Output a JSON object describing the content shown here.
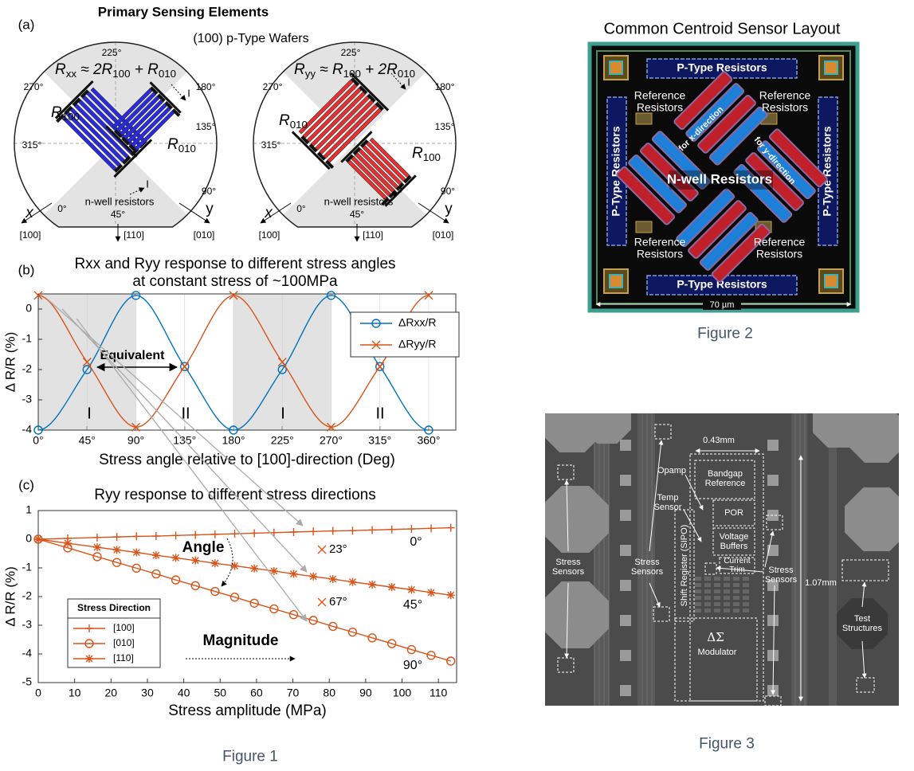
{
  "panel_a": {
    "label": "(a)",
    "title": "Primary Sensing Elements",
    "subtitle": "(100) p-Type Wafers",
    "wafers": [
      {
        "formula": [
          "R",
          "xx",
          " ≈ 2R",
          "100",
          " + R",
          "010"
        ],
        "r_first": [
          "R",
          "100"
        ],
        "r_second": [
          "R",
          "010"
        ],
        "current": [
          "I",
          "I"
        ],
        "angles": [
          "225°",
          "270°",
          "180°",
          "135°",
          "315°",
          "90°",
          "0°",
          "45°"
        ],
        "region": "n-well resistors",
        "x_axis": "x",
        "y_axis": "y",
        "directions": [
          "[100]",
          "[110]",
          "[010]"
        ]
      },
      {
        "formula": [
          "R",
          "yy",
          " ≈ R",
          "100",
          " + 2R",
          "010"
        ],
        "r_first": [
          "R",
          "010"
        ],
        "r_second": [
          "R",
          "100"
        ],
        "current": [
          "I",
          "I"
        ],
        "angles": [
          "225°",
          "270°",
          "180°",
          "135°",
          "315°",
          "90°",
          "0°",
          "45°"
        ],
        "region": "n-well resistors",
        "x_axis": "x",
        "y_axis": "y",
        "directions": [
          "[100]",
          "[110]",
          "[010]"
        ]
      }
    ]
  },
  "chart_data": [
    {
      "type": "line",
      "label": "(b)",
      "title": [
        "Rxx and Ryy response to different stress angles",
        "at constant stress of ~100MPa"
      ],
      "x": [
        0,
        45,
        90,
        135,
        180,
        225,
        270,
        315,
        360
      ],
      "series": [
        {
          "name": "ΔRxx/R",
          "color": "#0072bd",
          "marker": "o",
          "values": [
            -4,
            -2,
            0.45,
            -1.9,
            -4,
            -2,
            0.45,
            -1.9,
            -4
          ]
        },
        {
          "name": "ΔRyy/R",
          "color": "#d95319",
          "marker": "x",
          "values": [
            0.45,
            -1.75,
            -3.9,
            -1.9,
            0.45,
            -1.75,
            -3.9,
            -1.9,
            0.45
          ]
        }
      ],
      "xlim": [
        0,
        385
      ],
      "ylim": [
        -4,
        0.5
      ],
      "xticks": [
        {
          "value": 0,
          "label": "0°"
        },
        {
          "value": 45,
          "label": "45°"
        },
        {
          "value": 90,
          "label": "90°"
        },
        {
          "value": 135,
          "label": "135°"
        },
        {
          "value": 180,
          "label": "180°"
        },
        {
          "value": 225,
          "label": "225°"
        },
        {
          "value": 270,
          "label": "270°"
        },
        {
          "value": 315,
          "label": "315°"
        },
        {
          "value": 360,
          "label": "360°"
        }
      ],
      "yticks": [
        0,
        -1,
        -2,
        -3,
        -4
      ],
      "shaded": [
        [
          0,
          90
        ],
        [
          180,
          270
        ]
      ],
      "xlabel": "Stress angle relative to [100]-direction (Deg)",
      "ylabel": "Δ R/R (%)",
      "legend": "upper right",
      "annotations": [
        "Equivalent",
        "I",
        "II",
        "I",
        "II"
      ]
    },
    {
      "type": "line",
      "label": "(c)",
      "title": [
        "Ryy response to different stress directions"
      ],
      "x": [
        0,
        8.1,
        16.2,
        21.6,
        27,
        32.4,
        37.8,
        43.2,
        48.6,
        54,
        59.4,
        64.8,
        70.2,
        75.6,
        81,
        86.4,
        91.8,
        97.2,
        102.6,
        108,
        113.4
      ],
      "series": [
        {
          "name": "[100]",
          "color": "#d95319",
          "marker": "+",
          "values": [
            0,
            0.03,
            0.06,
            0.08,
            0.1,
            0.11,
            0.13,
            0.15,
            0.17,
            0.19,
            0.21,
            0.23,
            0.25,
            0.27,
            0.29,
            0.3,
            0.32,
            0.34,
            0.36,
            0.38,
            0.4
          ]
        },
        {
          "name": "[010]",
          "color": "#d95319",
          "marker": "o",
          "values": [
            0,
            -0.3,
            -0.61,
            -0.81,
            -1.01,
            -1.21,
            -1.42,
            -1.62,
            -1.82,
            -2.02,
            -2.23,
            -2.43,
            -2.63,
            -2.83,
            -3.04,
            -3.24,
            -3.44,
            -3.64,
            -3.85,
            -4.05,
            -4.25
          ]
        },
        {
          "name": "[110]",
          "color": "#d95319",
          "marker": "*",
          "values": [
            0,
            -0.14,
            -0.28,
            -0.37,
            -0.46,
            -0.56,
            -0.65,
            -0.74,
            -0.84,
            -0.93,
            -1.02,
            -1.11,
            -1.21,
            -1.3,
            -1.39,
            -1.49,
            -1.58,
            -1.67,
            -1.76,
            -1.86,
            -1.95
          ]
        }
      ],
      "xlim": [
        0,
        115
      ],
      "ylim": [
        -5,
        1
      ],
      "xticks": [
        0,
        10,
        20,
        30,
        40,
        50,
        60,
        70,
        80,
        90,
        100,
        110
      ],
      "yticks": [
        1,
        0,
        -1,
        -2,
        -3,
        -4,
        -5
      ],
      "xlabel": "Stress amplitude (MPa)",
      "ylabel": "Δ R/R (%)",
      "legend": "lower left",
      "legend_title": "Stress Direction",
      "annotations": [
        "0°",
        "45°",
        "90°",
        "23°",
        "67°",
        "Angle",
        "Magnitude"
      ]
    }
  ],
  "figure1_caption": "Figure 1",
  "figure2": {
    "title": "Common Centroid Sensor Layout",
    "p_type": [
      "P-Type Resistors",
      "P-Type Resistors",
      "P-Type Resistors",
      "P-Type Resistors"
    ],
    "reference": [
      "Reference Resistors",
      "Reference Resistors",
      "Reference Resistors",
      "Reference Resistors"
    ],
    "nwell": "N-well Resistors",
    "x_dir": "for x-direction",
    "y_dir": "for y-direction",
    "scale": "70 µm",
    "caption": "Figure 2"
  },
  "figure3": {
    "width": "0.43mm",
    "height": "1.07mm",
    "bandgap": "Bandgap Reference",
    "opamp": "Opamp",
    "temp": "Temp Sensor",
    "por": "POR",
    "buffers": "Voltage Buffers",
    "trim": "Current Trim",
    "shift": "Shift Register (SIPO)",
    "modulator_symbol": "ΔΣ",
    "modulator": "Modulator",
    "test": "Test Structures",
    "stress": [
      "Stress Sensors",
      "Stress Sensors",
      "Stress Sensors"
    ],
    "caption": "Figure 3"
  }
}
